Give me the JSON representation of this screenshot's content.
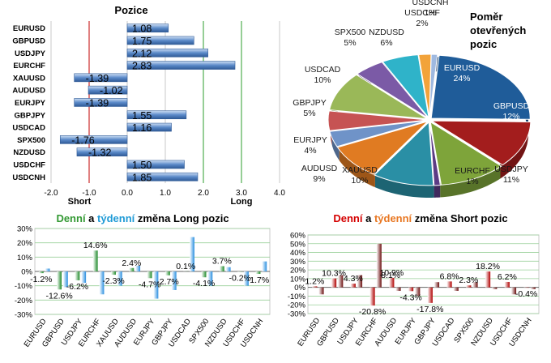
{
  "colors": {
    "long_green": "#339933",
    "long_cyan": "#1e9ad6",
    "short_red": "#d40000",
    "short_orange": "#e87722",
    "bar_blue": "#5b8ac9",
    "grid_green": "#2e9e2e",
    "grid_red": "#c00000"
  },
  "chart_data": [
    {
      "type": "bar",
      "orientation": "horizontal",
      "title": "Pozice",
      "categories": [
        "EURUSD",
        "GBPUSD",
        "USDJPY",
        "EURCHF",
        "XAUUSD",
        "AUDUSD",
        "EURJPY",
        "GBPJPY",
        "USDCAD",
        "SPX500",
        "NZDUSD",
        "USDCHF",
        "USDCNH"
      ],
      "values": [
        1.08,
        1.75,
        2.12,
        2.83,
        -1.39,
        -1.02,
        -1.39,
        1.55,
        1.16,
        -1.76,
        -1.32,
        1.5,
        1.85
      ],
      "value_labels": [
        "1.08",
        "1.75",
        "2.12",
        "2.83",
        "-1.39",
        "-1.02",
        "-1.39",
        "1.55",
        "1.16",
        "-1.76",
        "-1.32",
        "1.50",
        "1.85"
      ],
      "xlim": [
        -2.0,
        4.0
      ],
      "xticks": [
        "-2.0",
        "-1.0",
        "0.0",
        "1.0",
        "2.0",
        "3.0",
        "4.0"
      ],
      "annotations": {
        "short": "Short",
        "long": "Long"
      }
    },
    {
      "type": "pie",
      "title_lines": [
        "Poměr",
        "otevřených",
        "pozic"
      ],
      "slices": [
        {
          "label": "EURUSD",
          "pct": "24%",
          "value": 24,
          "color": "#1f5c99"
        },
        {
          "label": "GBPUSD",
          "pct": "12%",
          "value": 12,
          "color": "#a31d1d"
        },
        {
          "label": "USDJPY",
          "pct": "11%",
          "value": 11,
          "color": "#7ea43a"
        },
        {
          "label": "EURCHF",
          "pct": "1%",
          "value": 1,
          "color": "#5c3b85"
        },
        {
          "label": "XAUUSD",
          "pct": "10%",
          "value": 10,
          "color": "#2a8fa5"
        },
        {
          "label": "AUDUSD",
          "pct": "9%",
          "value": 9,
          "color": "#e07b22"
        },
        {
          "label": "EURJPY",
          "pct": "4%",
          "value": 4,
          "color": "#6f93c8"
        },
        {
          "label": "GBPJPY",
          "pct": "5%",
          "value": 5,
          "color": "#c65353"
        },
        {
          "label": "USDCAD",
          "pct": "10%",
          "value": 10,
          "color": "#9ab858"
        },
        {
          "label": "SPX500",
          "pct": "5%",
          "value": 5,
          "color": "#7b5aa6"
        },
        {
          "label": "NZDUSD",
          "pct": "6%",
          "value": 6,
          "color": "#2fb3c9"
        },
        {
          "label": "USDCHF",
          "pct": "2%",
          "value": 2,
          "color": "#f2a33a"
        },
        {
          "label": "USDCNH",
          "pct": "1%",
          "value": 1,
          "color": "#9fb9e0"
        }
      ]
    },
    {
      "type": "bar",
      "title_parts": [
        "Denní",
        " a ",
        "týdenní",
        " změna Long pozic"
      ],
      "categories": [
        "EURUSD",
        "GBPUSD",
        "USDJPY",
        "EURCHF",
        "XAUUSD",
        "AUDUSD",
        "EURJPY",
        "GBPJPY",
        "USDCAD",
        "SPX500",
        "NZDUSD",
        "USDCHF",
        "USDCNH"
      ],
      "series": [
        {
          "values": [
            -1.2,
            -12.6,
            -6.2,
            14.6,
            -2.3,
            2.4,
            -4.7,
            -2.7,
            0.1,
            -4.1,
            3.7,
            -0.2,
            -1.7
          ]
        },
        {
          "values": [
            2,
            -11,
            -8,
            -16,
            -10,
            4,
            -19,
            -13,
            24,
            -10,
            3,
            -10,
            7
          ]
        }
      ],
      "value_labels": [
        "-1.2%",
        "-12.6%",
        "-6.2%",
        "14.6%",
        "-2.3%",
        "2.4%",
        "-4.7%",
        "-2.7%",
        "0.1%",
        "-4.1%",
        "3.7%",
        "-0.2%",
        "-1.7%"
      ],
      "ylim": [
        -30,
        30
      ],
      "yticks": [
        "30%",
        "20%",
        "10%",
        "0%",
        "-10%",
        "-20%",
        "-30%"
      ]
    },
    {
      "type": "bar",
      "title_parts": [
        "Denní",
        " a ",
        "týdenní",
        " změna Short pozic"
      ],
      "categories": [
        "EURUSD",
        "GBPUSD",
        "USDJPY",
        "EURCHF",
        "AUDUSD",
        "EURJPY",
        "GBPJPY",
        "USDCAD",
        "SPX500",
        "NZDUSD",
        "USDCHF",
        "USDCNH"
      ],
      "series": [
        {
          "values": [
            1.2,
            10.3,
            4.3,
            -20.8,
            10.9,
            -4.3,
            -17.8,
            6.8,
            2.3,
            18.2,
            6.2,
            -0.4
          ]
        },
        {
          "values": [
            -8,
            14,
            14,
            50,
            -4,
            -10,
            6,
            -4,
            6,
            -2,
            -8,
            -2
          ]
        }
      ],
      "value_labels": [
        "1.2%",
        "10.3%",
        "4.3%",
        "-20.8%",
        "10.9%",
        "-4.3%",
        "-17.8%",
        "6.8%",
        "2.3%",
        "18.2%",
        "6.2%",
        "-0.4%"
      ],
      "extra_label": "8.1%",
      "ylim": [
        -30,
        60
      ],
      "yticks": [
        "60%",
        "50%",
        "40%",
        "30%",
        "20%",
        "10%",
        "0%",
        "-10%",
        "-20%",
        "-30%"
      ]
    }
  ]
}
